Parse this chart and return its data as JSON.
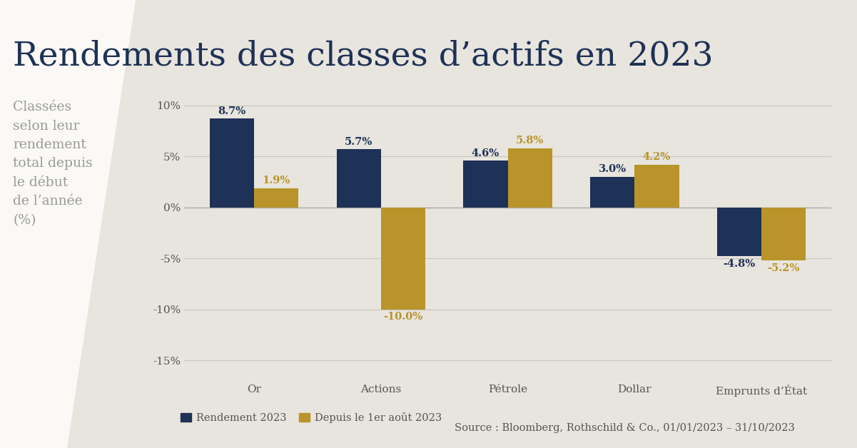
{
  "title": "Rendements des classes d’actifs en 2023",
  "subtitle_lines": [
    "Classées",
    "selon leur",
    "rendement",
    "total depuis",
    "le début",
    "de l’année",
    "(%)"
  ],
  "categories": [
    "Or",
    "Actions",
    "Pétrole",
    "Dollar",
    "Emprunts d’État"
  ],
  "series1_label": "Rendement 2023",
  "series2_label": "Depuis le 1er août 2023",
  "source_text": "Source : Bloomberg, Rothschild & Co., 01/01/2023 – 31/10/2023",
  "series1_values": [
    8.7,
    5.7,
    4.6,
    3.0,
    -4.8
  ],
  "series2_values": [
    1.9,
    -10.0,
    5.8,
    4.2,
    -5.2
  ],
  "series1_color": "#1e3156",
  "series2_color": "#b8942a",
  "bg_color": "#faf9f6",
  "chart_panel_color": "#e8e5de",
  "ylim": [
    -17,
    12
  ],
  "yticks": [
    -15,
    -10,
    -5,
    0,
    5,
    10
  ],
  "ytick_labels": [
    "-15%",
    "-10%",
    "-5%",
    "0%",
    "5%",
    "10%"
  ],
  "title_color": "#1e3156",
  "subtitle_color": "#9a9a94",
  "bar_width": 0.35,
  "label_fontsize": 10.5,
  "title_fontsize": 34,
  "subtitle_fontsize": 13.5,
  "axis_fontsize": 11,
  "legend_fontsize": 10.5
}
